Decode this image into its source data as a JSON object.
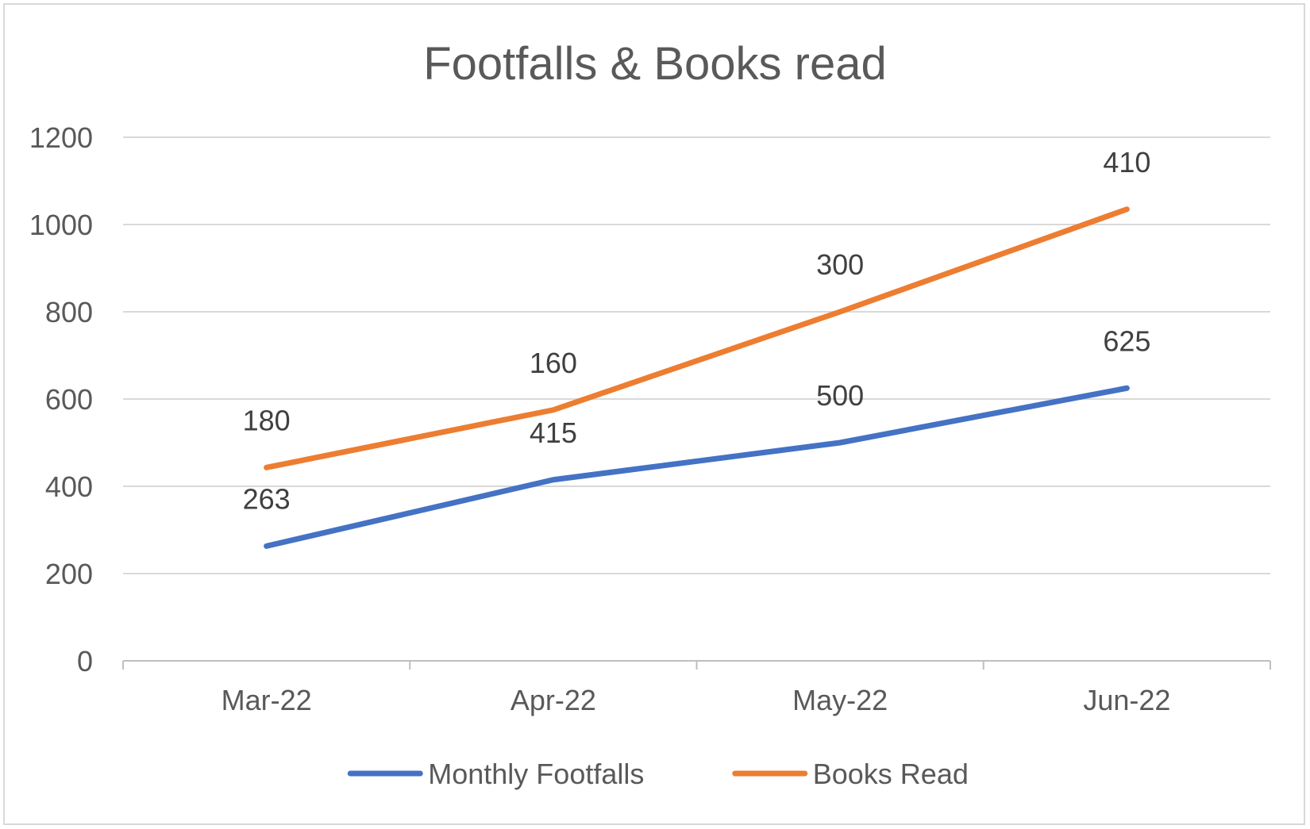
{
  "chart_data": {
    "type": "line",
    "title": "Footfalls & Books read",
    "xlabel": "",
    "ylabel": "",
    "categories": [
      "Mar-22",
      "Apr-22",
      "May-22",
      "Jun-22"
    ],
    "ylim": [
      0,
      1200
    ],
    "yticks": [
      "0",
      "200",
      "400",
      "600",
      "800",
      "1000",
      "1200"
    ],
    "grid": true,
    "legend_position": "bottom",
    "stacked": true,
    "series": [
      {
        "name": "Monthly Footfalls",
        "color": "#4472C4",
        "values": [
          263,
          415,
          500,
          625
        ],
        "labels": [
          "263",
          "415",
          "500",
          "625"
        ]
      },
      {
        "name": "Books Read",
        "color": "#ED7D31",
        "values": [
          180,
          160,
          300,
          410
        ],
        "labels": [
          "180",
          "160",
          "300",
          "410"
        ]
      }
    ]
  }
}
